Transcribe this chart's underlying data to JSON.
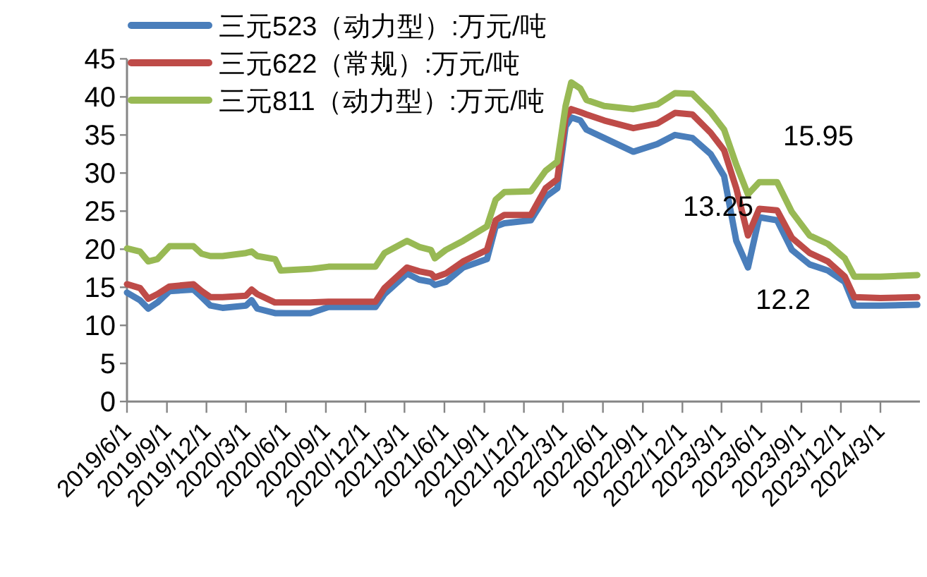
{
  "chart_data": {
    "type": "line",
    "legend": "top left",
    "x": [
      "2019-06-01",
      "2019-07-01",
      "2019-07-20",
      "2019-08-10",
      "2019-09-07",
      "2019-11-01",
      "2019-11-20",
      "2019-12-10",
      "2020-01-07",
      "2020-03-01",
      "2020-03-14",
      "2020-03-27",
      "2020-05-07",
      "2020-05-20",
      "2020-07-27",
      "2020-09-07",
      "2020-12-24",
      "2021-01-14",
      "2021-03-07",
      "2021-04-04",
      "2021-05-01",
      "2021-05-10",
      "2021-06-04",
      "2021-07-14",
      "2021-09-07",
      "2021-09-27",
      "2021-10-17",
      "2021-12-17",
      "2022-01-20",
      "2022-02-16",
      "2022-03-07",
      "2022-03-20",
      "2022-04-10",
      "2022-04-24",
      "2022-06-04",
      "2022-08-10",
      "2022-10-04",
      "2022-11-14",
      "2022-12-24",
      "2023-02-04",
      "2023-03-07",
      "2023-04-04",
      "2023-05-01",
      "2023-05-27",
      "2023-07-07",
      "2023-08-10",
      "2023-09-20",
      "2023-11-01",
      "2023-12-10",
      "2024-01-01",
      "2024-03-01",
      "2024-05-25"
    ],
    "series": [
      {
        "name": "三元523（动力型）:万元/吨",
        "color": "#4a7ebb",
        "values": [
          14.3,
          13.3,
          12.2,
          13.0,
          14.5,
          14.7,
          13.7,
          12.6,
          12.3,
          12.6,
          13.3,
          12.2,
          11.6,
          11.6,
          11.6,
          12.4,
          12.4,
          14.1,
          16.8,
          16.0,
          15.7,
          15.3,
          15.7,
          17.6,
          18.7,
          23.0,
          23.4,
          23.8,
          26.9,
          28.0,
          36.1,
          37.3,
          36.9,
          35.7,
          34.6,
          32.8,
          33.8,
          35.0,
          34.6,
          32.5,
          29.6,
          21.1,
          17.6,
          24.2,
          23.8,
          19.9,
          18.0,
          17.2,
          15.7,
          12.6,
          12.6,
          12.7
        ]
      },
      {
        "name": "三元622（常规）:万元/吨",
        "color": "#be4b48",
        "values": [
          15.4,
          14.9,
          13.5,
          14.1,
          15.1,
          15.4,
          14.5,
          13.7,
          13.7,
          13.9,
          14.7,
          14.1,
          13.0,
          13.0,
          13.0,
          13.1,
          13.1,
          14.9,
          17.6,
          17.1,
          16.8,
          16.3,
          16.8,
          18.4,
          19.9,
          23.8,
          24.5,
          24.5,
          28.0,
          29.2,
          37.3,
          38.4,
          38.0,
          37.7,
          36.9,
          35.9,
          36.5,
          37.9,
          37.7,
          35.3,
          33.0,
          28.0,
          21.8,
          25.3,
          25.1,
          21.5,
          19.5,
          18.4,
          16.4,
          13.7,
          13.6,
          13.7
        ]
      },
      {
        "name": "三元811（动力型）:万元/吨",
        "color": "#98b954",
        "values": [
          20.1,
          19.7,
          18.4,
          18.7,
          20.4,
          20.4,
          19.4,
          19.1,
          19.1,
          19.5,
          19.7,
          19.1,
          18.7,
          17.2,
          17.4,
          17.7,
          17.7,
          19.5,
          21.1,
          20.3,
          19.9,
          18.8,
          19.9,
          21.1,
          23.0,
          26.5,
          27.5,
          27.6,
          30.3,
          31.5,
          38.8,
          41.9,
          41.1,
          39.6,
          38.8,
          38.4,
          39.0,
          40.5,
          40.4,
          38.0,
          35.7,
          31.1,
          27.2,
          28.8,
          28.8,
          24.9,
          21.8,
          20.7,
          18.8,
          16.4,
          16.4,
          16.6
        ]
      }
    ],
    "xlim": [
      "2019-06-01",
      "2024-05-31"
    ],
    "xticks": [
      {
        "value": "2019-06-01",
        "label": "2019/6/1"
      },
      {
        "value": "2019-09-01",
        "label": "2019/9/1"
      },
      {
        "value": "2019-12-01",
        "label": "2019/12/1"
      },
      {
        "value": "2020-03-01",
        "label": "2020/3/1"
      },
      {
        "value": "2020-06-01",
        "label": "2020/6/1"
      },
      {
        "value": "2020-09-01",
        "label": "2020/9/1"
      },
      {
        "value": "2020-12-01",
        "label": "2020/12/1"
      },
      {
        "value": "2021-03-01",
        "label": "2021/3/1"
      },
      {
        "value": "2021-06-01",
        "label": "2021/6/1"
      },
      {
        "value": "2021-09-01",
        "label": "2021/9/1"
      },
      {
        "value": "2021-12-01",
        "label": "2021/12/1"
      },
      {
        "value": "2022-03-01",
        "label": "2022/3/1"
      },
      {
        "value": "2022-06-01",
        "label": "2022/6/1"
      },
      {
        "value": "2022-09-01",
        "label": "2022/9/1"
      },
      {
        "value": "2022-12-01",
        "label": "2022/12/1"
      },
      {
        "value": "2023-03-01",
        "label": "2023/3/1"
      },
      {
        "value": "2023-06-01",
        "label": "2023/6/1"
      },
      {
        "value": "2023-09-01",
        "label": "2023/9/1"
      },
      {
        "value": "2023-12-01",
        "label": "2023/12/1"
      },
      {
        "value": "2024-03-01",
        "label": "2024/3/1"
      }
    ],
    "ylim": [
      0,
      45
    ],
    "yticks": [
      0,
      5,
      10,
      15,
      20,
      25,
      30,
      35,
      40,
      45
    ],
    "annotations": [
      "15.95",
      "13.25",
      "12.2"
    ]
  }
}
